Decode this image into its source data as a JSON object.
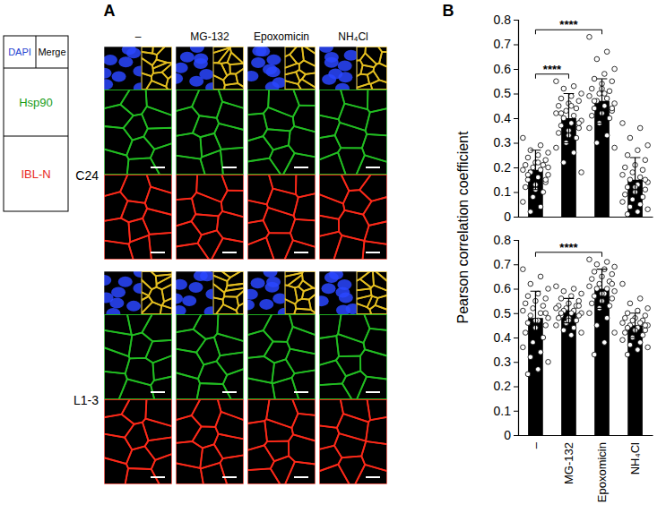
{
  "panel_a": {
    "letter": "A",
    "key": {
      "dapi": "DAPI",
      "merge": "Merge",
      "hsp90": "Hsp90",
      "ibl": "IBL-N"
    },
    "columns": [
      "–",
      "MG-132",
      "Epoxomicin",
      "NH₄Cl"
    ],
    "rows": [
      "C24",
      "L1-3"
    ]
  },
  "panel_b": {
    "letter": "B"
  },
  "chart_data": [
    {
      "type": "bar",
      "y_label": "Pearson correlation coefficient",
      "categories": [
        null,
        null,
        null,
        null
      ],
      "values": [
        0.19,
        0.4,
        0.47,
        0.15
      ],
      "errors": [
        0.08,
        0.1,
        0.09,
        0.09
      ],
      "points": [
        [
          0.32,
          0.29,
          0.27,
          0.26,
          0.25,
          0.24,
          0.23,
          0.22,
          0.21,
          0.21,
          0.2,
          0.19,
          0.19,
          0.18,
          0.17,
          0.16,
          0.15,
          0.14,
          0.13,
          0.12,
          0.1,
          0.08,
          0.06,
          0.04,
          0.02,
          0.2,
          0.22,
          0.17,
          0.15,
          0.11
        ],
        [
          0.55,
          0.53,
          0.52,
          0.5,
          0.49,
          0.48,
          0.47,
          0.46,
          0.45,
          0.44,
          0.43,
          0.42,
          0.41,
          0.4,
          0.39,
          0.38,
          0.37,
          0.36,
          0.35,
          0.34,
          0.32,
          0.3,
          0.28,
          0.26,
          0.22,
          0.18,
          0.45,
          0.42,
          0.38,
          0.33
        ],
        [
          0.73,
          0.67,
          0.64,
          0.6,
          0.58,
          0.56,
          0.55,
          0.54,
          0.52,
          0.51,
          0.5,
          0.49,
          0.48,
          0.47,
          0.46,
          0.45,
          0.44,
          0.43,
          0.42,
          0.41,
          0.4,
          0.38,
          0.36,
          0.33,
          0.3,
          0.28,
          0.5,
          0.47,
          0.44,
          0.52
        ],
        [
          0.38,
          0.36,
          0.32,
          0.29,
          0.27,
          0.25,
          0.23,
          0.21,
          0.2,
          0.19,
          0.18,
          0.17,
          0.16,
          0.15,
          0.14,
          0.13,
          0.12,
          0.11,
          0.1,
          0.09,
          0.08,
          0.07,
          0.06,
          0.05,
          0.04,
          0.03,
          0.02,
          0.01,
          0.15,
          0.12
        ]
      ],
      "annotations": [
        {
          "between": [
            0,
            1
          ],
          "label": "****"
        },
        {
          "between": [
            0,
            2
          ],
          "label": "****"
        }
      ],
      "ylim": [
        0,
        0.8
      ],
      "yticks": [
        0,
        0.1,
        0.2,
        0.3,
        0.4,
        0.5,
        0.6,
        0.7,
        0.8
      ],
      "tick_labels": "y",
      "color": "#000000"
    },
    {
      "type": "bar",
      "categories": [
        "–",
        "MG-132",
        "Epoxomicin",
        "NH₄Cl"
      ],
      "values": [
        0.48,
        0.51,
        0.6,
        0.45
      ],
      "errors": [
        0.11,
        0.05,
        0.08,
        0.05
      ],
      "points": [
        [
          0.68,
          0.65,
          0.62,
          0.6,
          0.58,
          0.57,
          0.56,
          0.55,
          0.54,
          0.53,
          0.52,
          0.51,
          0.5,
          0.49,
          0.48,
          0.47,
          0.46,
          0.45,
          0.44,
          0.42,
          0.4,
          0.38,
          0.36,
          0.34,
          0.32,
          0.3,
          0.27,
          0.25,
          0.5,
          0.47
        ],
        [
          0.61,
          0.6,
          0.59,
          0.58,
          0.57,
          0.56,
          0.55,
          0.54,
          0.53,
          0.53,
          0.52,
          0.52,
          0.51,
          0.51,
          0.5,
          0.5,
          0.49,
          0.49,
          0.48,
          0.48,
          0.47,
          0.46,
          0.45,
          0.44,
          0.43,
          0.42,
          0.41,
          0.5,
          0.53,
          0.47
        ],
        [
          0.72,
          0.71,
          0.7,
          0.69,
          0.68,
          0.67,
          0.66,
          0.65,
          0.64,
          0.63,
          0.62,
          0.61,
          0.6,
          0.6,
          0.59,
          0.58,
          0.57,
          0.56,
          0.55,
          0.54,
          0.53,
          0.52,
          0.5,
          0.48,
          0.45,
          0.42,
          0.38,
          0.33,
          0.62,
          0.58
        ],
        [
          0.62,
          0.56,
          0.54,
          0.52,
          0.51,
          0.5,
          0.49,
          0.48,
          0.48,
          0.47,
          0.47,
          0.46,
          0.46,
          0.45,
          0.45,
          0.44,
          0.44,
          0.43,
          0.43,
          0.42,
          0.41,
          0.4,
          0.39,
          0.38,
          0.37,
          0.36,
          0.35,
          0.33,
          0.45,
          0.43
        ]
      ],
      "annotations": [
        {
          "between": [
            0,
            2
          ],
          "label": "****"
        }
      ],
      "ylim": [
        0,
        0.8
      ],
      "yticks": [
        0,
        0.1,
        0.2,
        0.3,
        0.4,
        0.5,
        0.6,
        0.7,
        0.8
      ],
      "color": "#000000"
    }
  ]
}
